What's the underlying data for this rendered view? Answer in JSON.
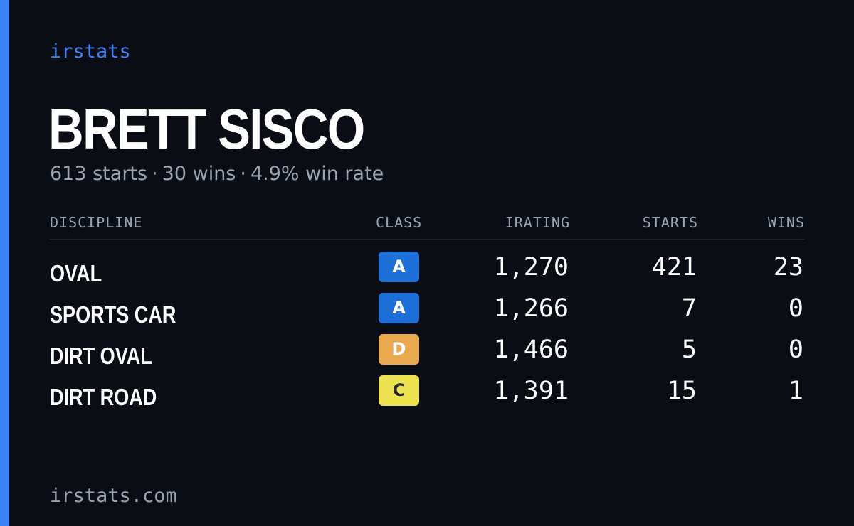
{
  "brand": "irstats",
  "driver": {
    "name": "BRETT SISCO",
    "starts_text": "613 starts",
    "wins_text": "30 wins",
    "win_rate_text": "4.9% win rate",
    "separator": "·"
  },
  "table": {
    "headers": {
      "discipline": "DISCIPLINE",
      "class": "CLASS",
      "irating": "IRATING",
      "starts": "STARTS",
      "wins": "WINS"
    },
    "rows": [
      {
        "discipline": "OVAL",
        "class": "A",
        "class_color": "#1b6fd6",
        "class_text_color": "#ffffff",
        "irating": "1,270",
        "starts": "421",
        "wins": "23"
      },
      {
        "discipline": "SPORTS CAR",
        "class": "A",
        "class_color": "#1b6fd6",
        "class_text_color": "#ffffff",
        "irating": "1,266",
        "starts": "7",
        "wins": "0"
      },
      {
        "discipline": "DIRT OVAL",
        "class": "D",
        "class_color": "#e9a94f",
        "class_text_color": "#ffffff",
        "irating": "1,466",
        "starts": "5",
        "wins": "0"
      },
      {
        "discipline": "DIRT ROAD",
        "class": "C",
        "class_color": "#ece24f",
        "class_text_color": "#2a2a2a",
        "irating": "1,391",
        "starts": "15",
        "wins": "1"
      }
    ]
  },
  "footer": {
    "site": "irstats.com"
  },
  "colors": {
    "background": "#0a0d14",
    "accent": "#3b82f6",
    "muted_text": "#9aa3b2"
  }
}
